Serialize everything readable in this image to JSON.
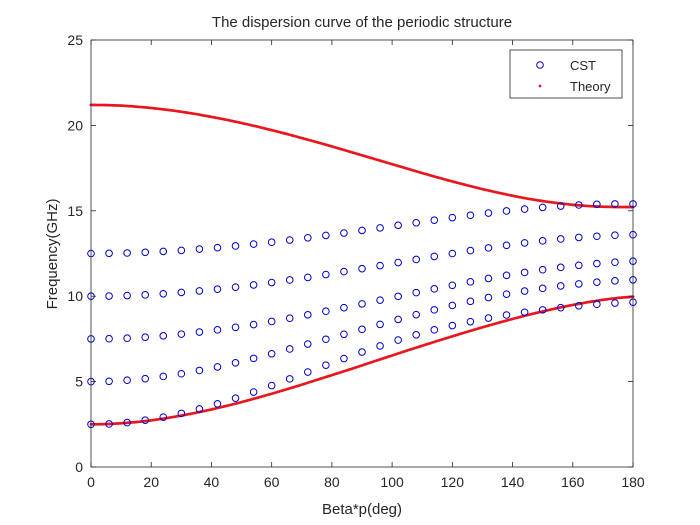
{
  "chart_data": {
    "type": "scatter",
    "title": "The dispersion curve of the periodic structure",
    "xlabel": "Beta*p(deg)",
    "ylabel": "Frequency(GHz)",
    "xlim": [
      0,
      180
    ],
    "ylim": [
      0,
      25
    ],
    "xticks": [
      0,
      20,
      40,
      60,
      80,
      100,
      120,
      140,
      160,
      180
    ],
    "yticks": [
      0,
      5,
      10,
      15,
      20,
      25
    ],
    "grid": false,
    "legend_position": "top-right",
    "series": [
      {
        "name": "CST",
        "marker": "open-circle",
        "color": "#0000cc",
        "x": [
          0,
          6,
          12,
          18,
          24,
          30,
          36,
          42,
          48,
          54,
          60,
          66,
          72,
          78,
          84,
          90,
          96,
          102,
          108,
          114,
          120,
          126,
          132,
          138,
          144,
          150,
          156,
          162,
          168,
          174,
          180
        ],
        "bands": [
          [
            2.5,
            2.52,
            2.6,
            2.74,
            2.92,
            3.14,
            3.4,
            3.7,
            4.03,
            4.39,
            4.77,
            5.16,
            5.56,
            5.96,
            6.35,
            6.73,
            7.09,
            7.43,
            7.74,
            8.03,
            8.28,
            8.51,
            8.72,
            8.9,
            9.06,
            9.2,
            9.33,
            9.44,
            9.53,
            9.6,
            9.65
          ],
          [
            5.0,
            5.02,
            5.08,
            5.17,
            5.3,
            5.46,
            5.65,
            5.86,
            6.1,
            6.36,
            6.63,
            6.91,
            7.2,
            7.48,
            7.77,
            8.06,
            8.35,
            8.64,
            8.92,
            9.2,
            9.46,
            9.7,
            9.92,
            10.12,
            10.3,
            10.46,
            10.6,
            10.72,
            10.82,
            10.9,
            10.96
          ],
          [
            7.5,
            7.51,
            7.54,
            7.6,
            7.68,
            7.78,
            7.9,
            8.03,
            8.18,
            8.34,
            8.52,
            8.71,
            8.91,
            9.12,
            9.33,
            9.55,
            9.77,
            9.99,
            10.21,
            10.43,
            10.64,
            10.84,
            11.04,
            11.22,
            11.39,
            11.55,
            11.69,
            11.81,
            11.91,
            11.99,
            12.05
          ],
          [
            10.0,
            10.01,
            10.04,
            10.08,
            10.14,
            10.22,
            10.31,
            10.41,
            10.53,
            10.66,
            10.8,
            10.95,
            11.1,
            11.27,
            11.44,
            11.61,
            11.79,
            11.97,
            12.15,
            12.33,
            12.5,
            12.67,
            12.83,
            12.98,
            13.12,
            13.24,
            13.35,
            13.44,
            13.51,
            13.57,
            13.6
          ],
          [
            12.5,
            12.51,
            12.53,
            12.57,
            12.62,
            12.68,
            12.76,
            12.84,
            12.94,
            13.05,
            13.16,
            13.29,
            13.42,
            13.56,
            13.7,
            13.85,
            14.0,
            14.15,
            14.3,
            14.45,
            14.6,
            14.74,
            14.87,
            14.99,
            15.1,
            15.2,
            15.28,
            15.34,
            15.38,
            15.4,
            15.4
          ]
        ]
      },
      {
        "name": "Theory",
        "marker": "dot",
        "color": "#e8171e",
        "x": [
          0,
          5,
          10,
          15,
          20,
          25,
          30,
          35,
          40,
          45,
          50,
          55,
          60,
          65,
          70,
          75,
          80,
          85,
          90,
          95,
          100,
          105,
          110,
          115,
          120,
          125,
          130,
          135,
          140,
          145,
          150,
          155,
          160,
          165,
          170,
          175,
          180
        ],
        "bands": [
          [
            2.5,
            2.51,
            2.56,
            2.63,
            2.73,
            2.86,
            3.01,
            3.18,
            3.37,
            3.58,
            3.8,
            4.04,
            4.29,
            4.55,
            4.82,
            5.1,
            5.38,
            5.66,
            5.95,
            6.24,
            6.53,
            6.82,
            7.1,
            7.38,
            7.65,
            7.92,
            8.18,
            8.43,
            8.67,
            8.9,
            9.11,
            9.31,
            9.49,
            9.65,
            9.79,
            9.9,
            9.97
          ],
          [
            21.2,
            21.19,
            21.16,
            21.1,
            21.02,
            20.92,
            20.8,
            20.66,
            20.5,
            20.33,
            20.14,
            19.94,
            19.72,
            19.5,
            19.26,
            19.02,
            18.77,
            18.51,
            18.25,
            17.99,
            17.73,
            17.47,
            17.21,
            16.96,
            16.72,
            16.49,
            16.27,
            16.07,
            15.88,
            15.71,
            15.57,
            15.45,
            15.35,
            15.28,
            15.24,
            15.22,
            15.22
          ]
        ]
      }
    ]
  }
}
